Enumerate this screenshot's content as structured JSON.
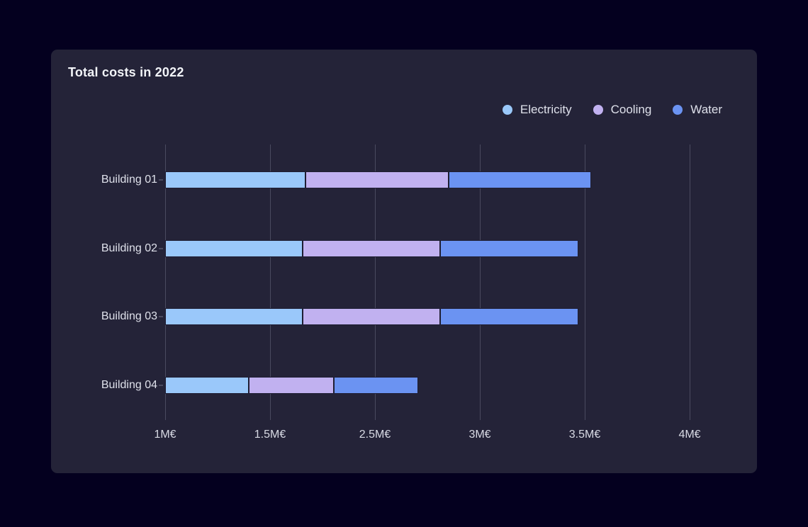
{
  "card": {
    "title": "Total costs in 2022"
  },
  "colors": {
    "page_bg": "#04001f",
    "card_bg": "#242338",
    "gridline": "#4a4a5f",
    "segment_border": "#1f1e33",
    "title_text": "#f2f4f8",
    "label_text": "#dee0ea",
    "tick_text": "#d8dae4",
    "electricity": "#9ac8fa",
    "cooling": "#c1b1f0",
    "water": "#6b93f2"
  },
  "chart_data": {
    "type": "bar",
    "orientation": "horizontal-stacked",
    "title": "Total costs in 2022",
    "categories": [
      "Building 01",
      "Building 02",
      "Building 03",
      "Building 04"
    ],
    "series": [
      {
        "name": "Electricity",
        "color_key": "electricity",
        "values": [
          0.67,
          0.655,
          0.655,
          0.4
        ]
      },
      {
        "name": "Cooling",
        "color_key": "cooling",
        "values": [
          0.68,
          0.655,
          0.655,
          0.405
        ]
      },
      {
        "name": "Water",
        "color_key": "water",
        "values": [
          0.68,
          0.66,
          0.66,
          0.4
        ]
      }
    ],
    "totals_m_eur": [
      2.03,
      1.97,
      1.97,
      1.21
    ],
    "x_axis": {
      "tick_labels": [
        "1M€",
        "1.5M€",
        "2.5M€",
        "3M€",
        "3.5M€",
        "4M€"
      ],
      "units_per_division": 0.5,
      "unit": "M€",
      "grid": true
    },
    "legend": {
      "position": "top-right",
      "entries": [
        "Electricity",
        "Cooling",
        "Water"
      ]
    }
  }
}
